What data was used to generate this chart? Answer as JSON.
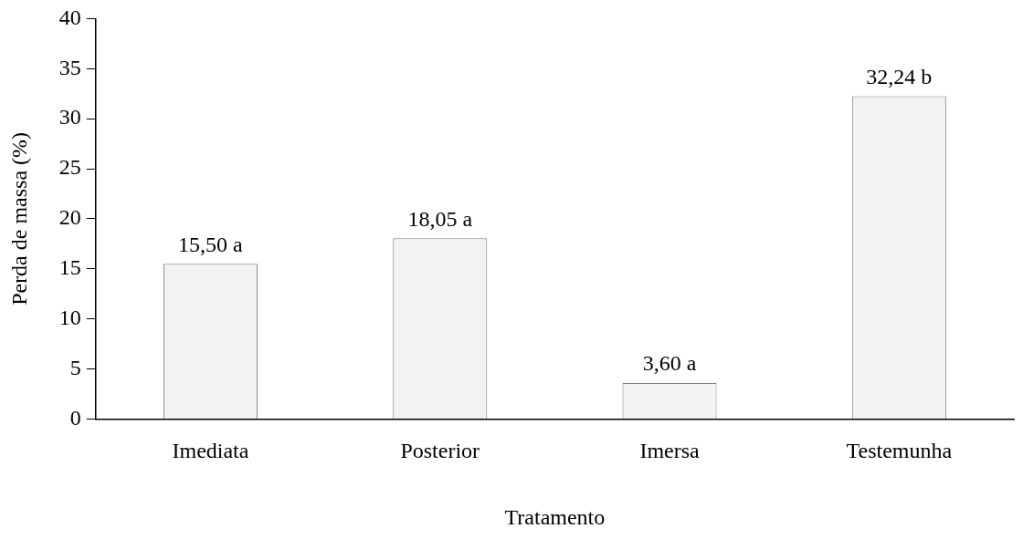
{
  "chart_data": {
    "type": "bar",
    "xlabel": "Tratamento",
    "ylabel": "Perda de massa (%)",
    "categories": [
      "Imediata",
      "Posterior",
      "Imersa",
      "Testemunha"
    ],
    "values": [
      15.5,
      18.05,
      3.6,
      32.24
    ],
    "value_labels": [
      "15,50 a",
      "18,05 a",
      "3,60 a",
      "32,24 b"
    ],
    "color": "#f2f2f2",
    "ylim": [
      0,
      40
    ],
    "yticks": [
      0,
      5,
      10,
      15,
      20,
      25,
      30,
      35,
      40
    ],
    "grid": false,
    "legend": false
  }
}
